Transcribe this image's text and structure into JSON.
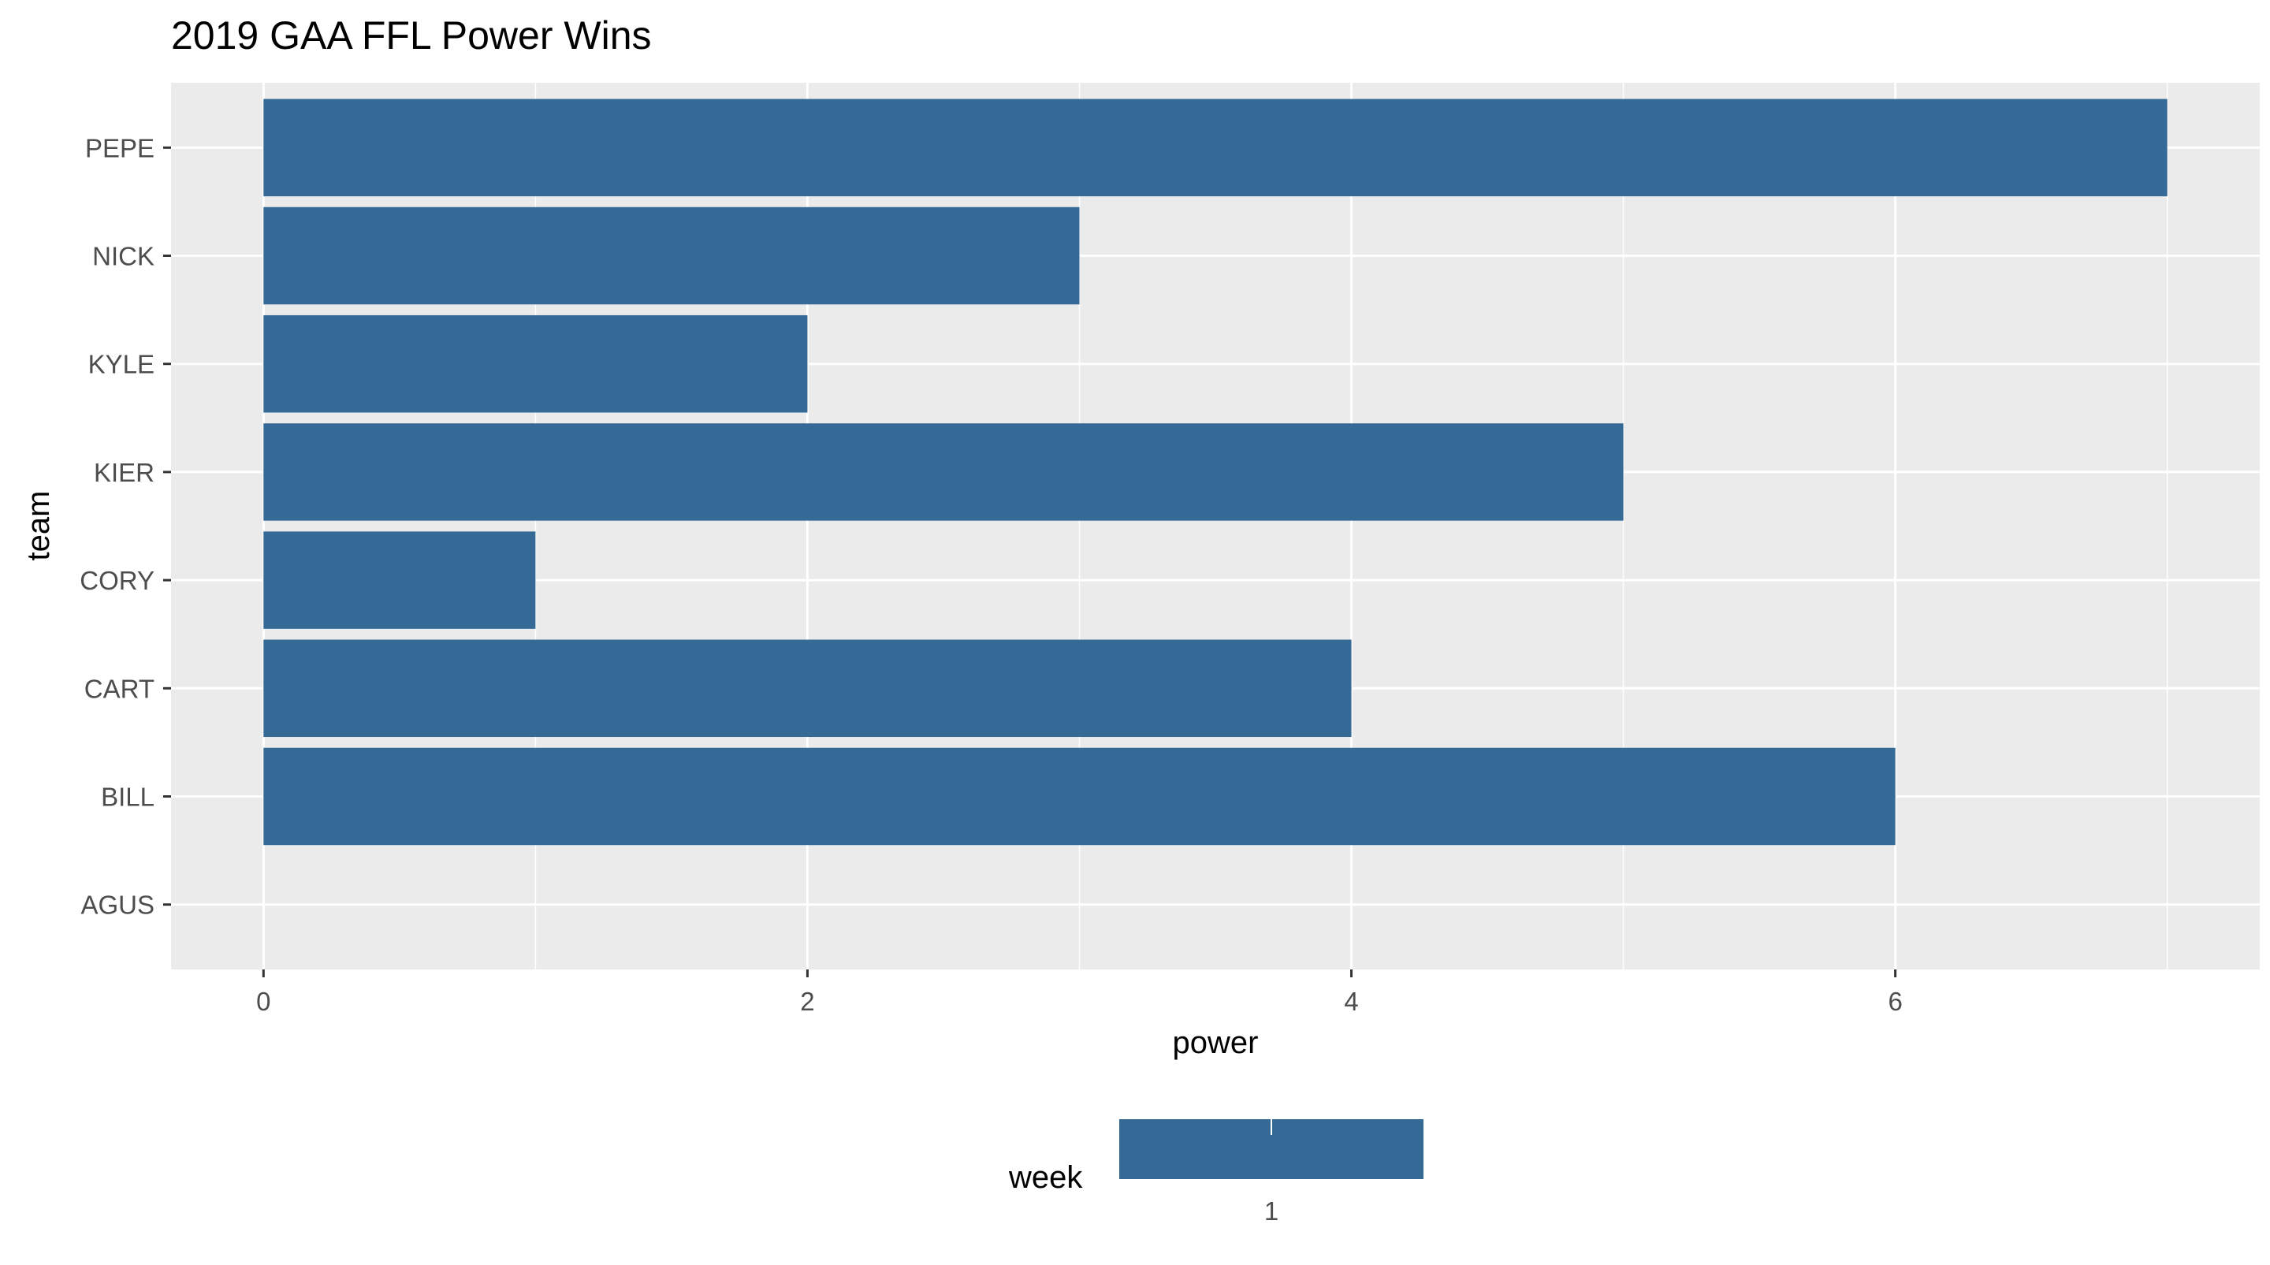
{
  "chart_data": {
    "type": "bar",
    "orientation": "horizontal",
    "title": "2019 GAA FFL Power Wins",
    "xlabel": "power",
    "ylabel": "team",
    "categories": [
      "AGUS",
      "BILL",
      "CART",
      "CORY",
      "KIER",
      "KYLE",
      "NICK",
      "PEPE"
    ],
    "series": [
      {
        "name": "1",
        "values": [
          0,
          6,
          4,
          1,
          5,
          2,
          3,
          7
        ]
      }
    ],
    "xlim": [
      -0.34,
      7.34
    ],
    "xticks": [
      0,
      2,
      4,
      6
    ],
    "xtick_labels": [
      "0",
      "2",
      "4",
      "6"
    ],
    "grid": true,
    "legend": {
      "title": "week",
      "position": "bottom",
      "labels": [
        "1"
      ]
    },
    "colors": {
      "bar": "#366a96",
      "panel": "#ebebeb",
      "grid": "#ffffff",
      "tick_text": "#4d4d4d"
    }
  }
}
